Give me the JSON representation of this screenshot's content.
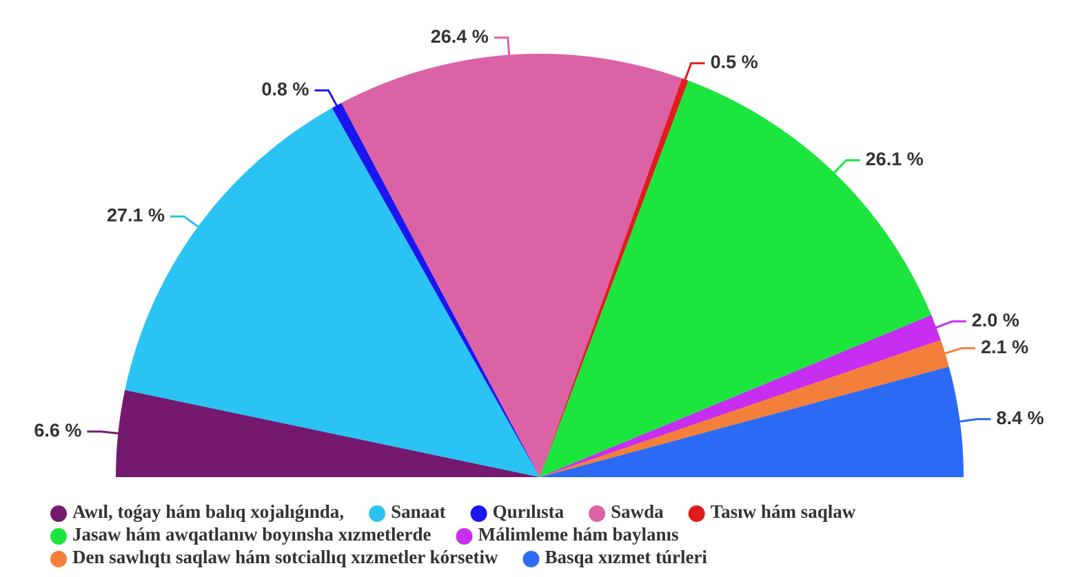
{
  "chart_data": {
    "type": "pie",
    "half": true,
    "categories": [
      "Awıl, toǵay hám balıq xojalıǵında,",
      "Sanaat",
      "Qurılısta",
      "Sawda",
      "Tasıw hám saqlaw",
      "Jasaw hám awqatlanıw boyınsha xızmetlerde",
      "Málimleme hám baylanıs",
      "Den sawlıqtı saqlaw hám sotciallıq xızmetler kórsetiw",
      "Basqa xızmet túrleri"
    ],
    "values": [
      6.6,
      27.1,
      0.8,
      26.4,
      0.5,
      26.1,
      2.0,
      2.1,
      8.4
    ],
    "value_labels": [
      "6.6 %",
      "27.1 %",
      "0.8 %",
      "26.4 %",
      "0.5 %",
      "26.1 %",
      "2.0 %",
      "2.1 %",
      "8.4 %"
    ],
    "colors": [
      "#74196e",
      "#2ac3f4",
      "#1a16f0",
      "#dc62a6",
      "#e01b1b",
      "#1ce63e",
      "#c72ef0",
      "#f47f3b",
      "#2b6af4"
    ]
  }
}
